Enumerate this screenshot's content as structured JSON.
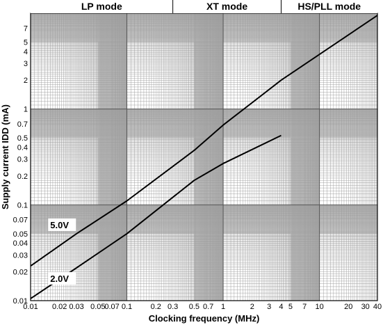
{
  "chart_data": {
    "type": "line",
    "xscale": "log",
    "yscale": "log",
    "xlim": [
      0.01,
      40
    ],
    "ylim": [
      0.01,
      10
    ],
    "xlabel": "Clocking frequency (MHz)",
    "ylabel": "Supply current IDD (mA)",
    "grid": true,
    "xticks": [
      {
        "v": 0.01,
        "label": "0.01"
      },
      {
        "v": 0.02,
        "label": "0.02"
      },
      {
        "v": 0.03,
        "label": "0.03"
      },
      {
        "v": 0.05,
        "label": "0.05"
      },
      {
        "v": 0.07,
        "label": "0.07"
      },
      {
        "v": 0.1,
        "label": "0.1"
      },
      {
        "v": 0.2,
        "label": "0.2"
      },
      {
        "v": 0.3,
        "label": "0.3"
      },
      {
        "v": 0.5,
        "label": "0.5"
      },
      {
        "v": 0.7,
        "label": "0.7"
      },
      {
        "v": 1,
        "label": "1"
      },
      {
        "v": 2,
        "label": "2"
      },
      {
        "v": 3,
        "label": "3"
      },
      {
        "v": 4,
        "label": "4"
      },
      {
        "v": 5,
        "label": "5"
      },
      {
        "v": 7,
        "label": "7"
      },
      {
        "v": 10,
        "label": "10"
      },
      {
        "v": 20,
        "label": "20"
      },
      {
        "v": 30,
        "label": "30"
      },
      {
        "v": 40,
        "label": "40"
      }
    ],
    "yticks": [
      {
        "v": 0.01,
        "label": "0.01"
      },
      {
        "v": 0.02,
        "label": "0.02"
      },
      {
        "v": 0.03,
        "label": "0.03"
      },
      {
        "v": 0.04,
        "label": "0.04"
      },
      {
        "v": 0.05,
        "label": "0.05"
      },
      {
        "v": 0.07,
        "label": "0.07"
      },
      {
        "v": 0.1,
        "label": "0.1"
      },
      {
        "v": 0.2,
        "label": "0.2"
      },
      {
        "v": 0.3,
        "label": "0.3"
      },
      {
        "v": 0.4,
        "label": "0.4"
      },
      {
        "v": 0.5,
        "label": "0.5"
      },
      {
        "v": 0.7,
        "label": "0.7"
      },
      {
        "v": 1,
        "label": "1"
      },
      {
        "v": 2,
        "label": "2"
      },
      {
        "v": 3,
        "label": "3"
      },
      {
        "v": 4,
        "label": "4"
      },
      {
        "v": 5,
        "label": "5"
      },
      {
        "v": 7,
        "label": "7"
      }
    ],
    "modes": [
      {
        "label": "LP mode",
        "from": 0.01,
        "to": 0.3
      },
      {
        "label": "XT mode",
        "from": 0.3,
        "to": 4
      },
      {
        "label": "HS/PLL mode",
        "from": 4,
        "to": 40
      }
    ],
    "series": [
      {
        "name": "5.0V",
        "label_at": {
          "x": 0.016,
          "y": 0.058
        },
        "points": [
          [
            0.01,
            0.023
          ],
          [
            0.03,
            0.05
          ],
          [
            0.1,
            0.11
          ],
          [
            0.5,
            0.37
          ],
          [
            1,
            0.68
          ],
          [
            4,
            2.0
          ],
          [
            40,
            9.5
          ]
        ]
      },
      {
        "name": "2.0V",
        "label_at": {
          "x": 0.016,
          "y": 0.016
        },
        "points": [
          [
            0.01,
            0.0105
          ],
          [
            0.03,
            0.022
          ],
          [
            0.1,
            0.05
          ],
          [
            0.5,
            0.18
          ],
          [
            1,
            0.27
          ],
          [
            4,
            0.53
          ]
        ]
      }
    ]
  }
}
